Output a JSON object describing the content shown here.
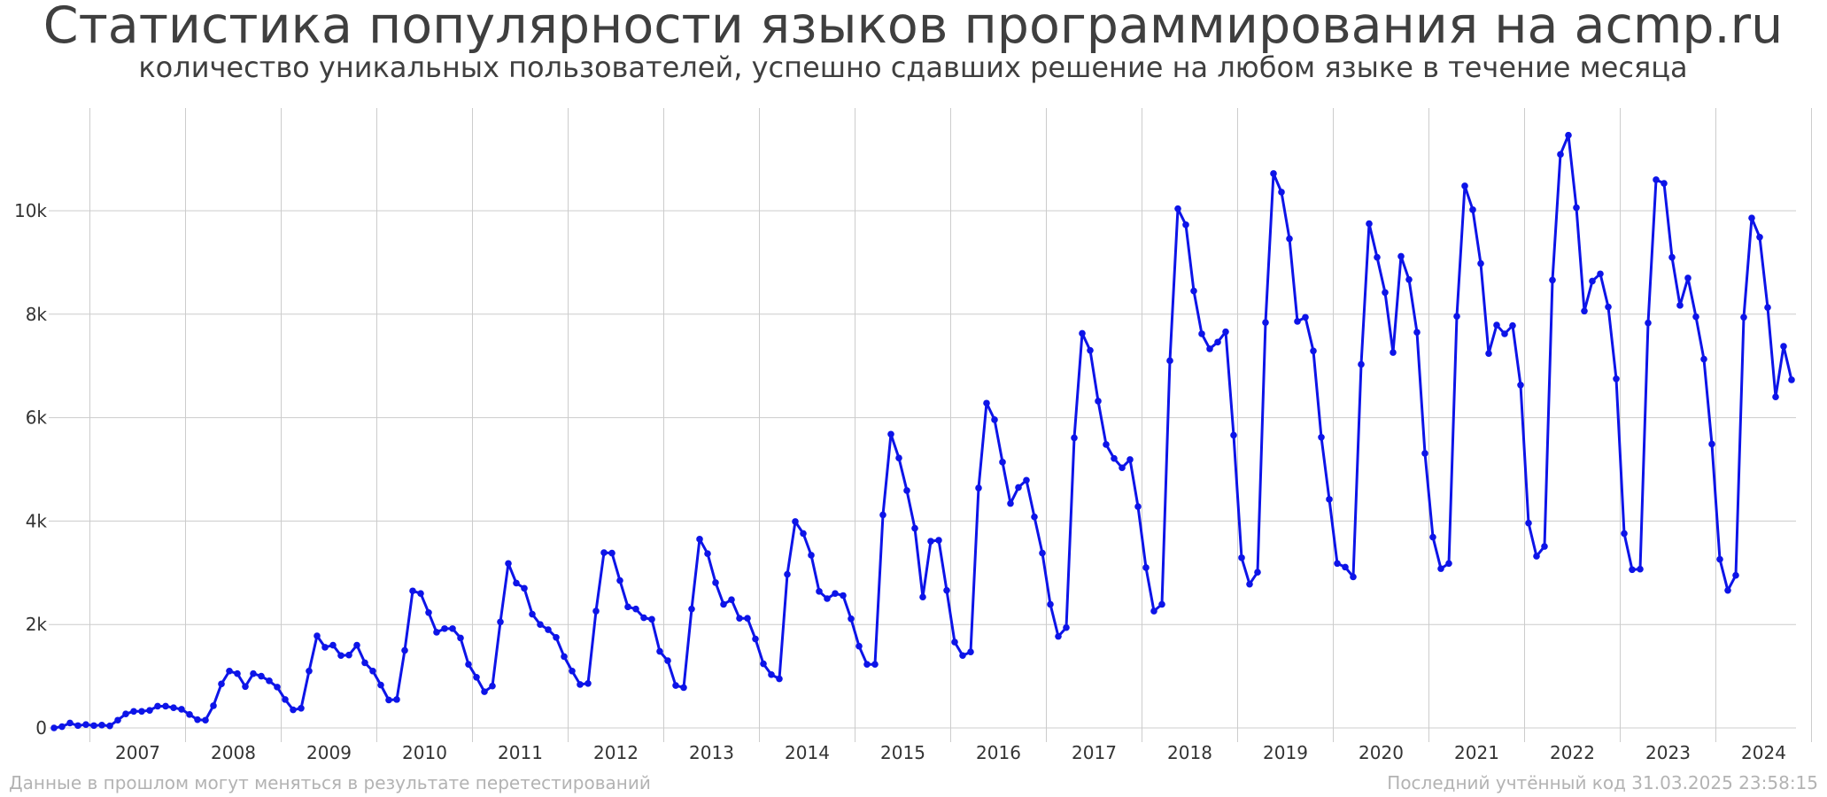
{
  "chart_data": {
    "type": "line",
    "title": "Статистика популярности языков программирования на acmp.ru",
    "subtitle": "количество уникальных пользователей, успешно сдавших решение на любом языке в течение месяца",
    "xlabel": "",
    "ylabel": "",
    "x_tick_labels": [
      "2007",
      "2008",
      "2009",
      "2010",
      "2011",
      "2012",
      "2013",
      "2014",
      "2015",
      "2016",
      "2017",
      "2018",
      "2019",
      "2020",
      "2021",
      "2022",
      "2023",
      "2024"
    ],
    "y_tick_labels": [
      "0",
      "2k",
      "4k",
      "6k",
      "8k",
      "10k"
    ],
    "y_ticks": [
      0,
      2000,
      4000,
      6000,
      8000,
      10000
    ],
    "ylim": [
      -200,
      11800
    ],
    "start_year": 2006,
    "start_month": 8,
    "grid": true,
    "line_color": "#0d14e8",
    "values": [
      0,
      25,
      95,
      45,
      65,
      45,
      55,
      40,
      150,
      270,
      320,
      320,
      340,
      420,
      420,
      390,
      360,
      260,
      160,
      150,
      430,
      850,
      1100,
      1050,
      800,
      1050,
      1000,
      910,
      790,
      550,
      350,
      380,
      1100,
      1780,
      1560,
      1600,
      1400,
      1410,
      1600,
      1260,
      1100,
      830,
      540,
      550,
      1500,
      2650,
      2600,
      2230,
      1850,
      1920,
      1920,
      1740,
      1230,
      980,
      700,
      810,
      2050,
      3180,
      2800,
      2700,
      2200,
      2000,
      1900,
      1750,
      1380,
      1100,
      840,
      860,
      2260,
      3390,
      3380,
      2850,
      2340,
      2300,
      2130,
      2100,
      1480,
      1300,
      820,
      780,
      2300,
      3650,
      3370,
      2810,
      2390,
      2480,
      2120,
      2120,
      1720,
      1240,
      1030,
      950,
      2970,
      3990,
      3760,
      3340,
      2640,
      2500,
      2600,
      2560,
      2110,
      1580,
      1230,
      1230,
      4120,
      5680,
      5220,
      4590,
      3860,
      2530,
      3610,
      3630,
      2660,
      1660,
      1400,
      1470,
      4640,
      6280,
      5960,
      5140,
      4340,
      4650,
      4790,
      4080,
      3380,
      2390,
      1770,
      1940,
      5610,
      7630,
      7300,
      6320,
      5480,
      5210,
      5030,
      5190,
      4280,
      3100,
      2260,
      2390,
      7100,
      10040,
      9730,
      8450,
      7620,
      7330,
      7460,
      7660,
      5660,
      3290,
      2780,
      3010,
      7840,
      10720,
      10360,
      9460,
      7860,
      7940,
      7290,
      5620,
      4420,
      3180,
      3110,
      2920,
      7030,
      9750,
      9100,
      8420,
      7260,
      9120,
      8670,
      7650,
      5310,
      3690,
      3080,
      3180,
      7960,
      10480,
      10020,
      8980,
      7240,
      7790,
      7620,
      7780,
      6630,
      3960,
      3320,
      3510,
      8660,
      11090,
      11460,
      10060,
      8060,
      8640,
      8780,
      8140,
      6750,
      3760,
      3060,
      3070,
      7830,
      10600,
      10530,
      9100,
      8170,
      8700,
      7950,
      7130,
      5490,
      3260,
      2660,
      2950,
      7940,
      9860,
      9490,
      8130,
      6400,
      7380,
      6730
    ],
    "footer_left": "Данные в прошлом могут меняться в результате перетестирований",
    "footer_right": "Последний учтённый код 31.03.2025 23:58:15"
  }
}
